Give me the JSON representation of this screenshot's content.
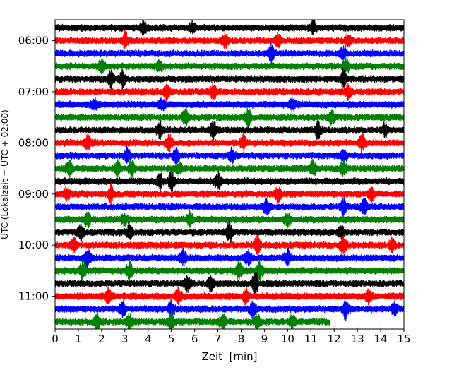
{
  "chart_data": {
    "type": "line",
    "title": "",
    "xlabel": "Zeit  [min]",
    "ylabel": "UTC (Lokalzeit = UTC + 02:00)",
    "xlim": [
      0,
      15
    ],
    "x_ticks": [
      "0",
      "1",
      "2",
      "3",
      "4",
      "5",
      "6",
      "7",
      "8",
      "9",
      "10",
      "11",
      "12",
      "13",
      "14",
      "15"
    ],
    "y_tick_labels": [
      "06:00",
      "07:00",
      "08:00",
      "09:00",
      "10:00",
      "11:00"
    ],
    "trace_interval_minutes": 15,
    "first_trace_start": "05:45",
    "traces_per_hour": 4,
    "grid": "dotted vertical lines at 12, 13 and 14 min below the last trace",
    "series": [
      {
        "color": "#000000",
        "starts": [
          "05:45",
          "06:45",
          "07:45",
          "08:45",
          "09:45",
          "10:45"
        ]
      },
      {
        "color": "#ff0000",
        "starts": [
          "06:00",
          "07:00",
          "08:00",
          "09:00",
          "10:00",
          "11:00"
        ]
      },
      {
        "color": "#0000ff",
        "starts": [
          "06:15",
          "07:15",
          "08:15",
          "09:15",
          "10:15",
          "11:15"
        ]
      },
      {
        "color": "#008000",
        "starts": [
          "06:30",
          "07:30",
          "08:30",
          "09:30",
          "10:30",
          "11:30"
        ]
      }
    ],
    "last_trace_end_min": 11.8,
    "traces": [
      {
        "start": "05:45",
        "events": [
          {
            "t": 3.8,
            "a": 1.0
          },
          {
            "t": 11.1,
            "a": 0.9
          },
          {
            "t": 5.9,
            "a": 0.7
          }
        ]
      },
      {
        "start": "06:00",
        "events": [
          {
            "t": 3.0,
            "a": 1.1
          },
          {
            "t": 7.3,
            "a": 1.0
          },
          {
            "t": 9.6,
            "a": 0.8
          },
          {
            "t": 12.6,
            "a": 0.8
          }
        ]
      },
      {
        "start": "06:15",
        "events": [
          {
            "t": 9.3,
            "a": 1.2
          },
          {
            "t": 12.4,
            "a": 0.8
          }
        ]
      },
      {
        "start": "06:30",
        "events": [
          {
            "t": 2.0,
            "a": 0.9
          },
          {
            "t": 4.5,
            "a": 0.8
          },
          {
            "t": 12.5,
            "a": 1.1
          }
        ]
      },
      {
        "start": "06:45",
        "events": [
          {
            "t": 2.4,
            "a": 1.3
          },
          {
            "t": 2.9,
            "a": 1.2
          },
          {
            "t": 12.4,
            "a": 1.2
          }
        ]
      },
      {
        "start": "07:00",
        "events": [
          {
            "t": 4.8,
            "a": 1.3
          },
          {
            "t": 6.8,
            "a": 1.1
          },
          {
            "t": 12.6,
            "a": 1.0
          }
        ]
      },
      {
        "start": "07:15",
        "events": [
          {
            "t": 4.6,
            "a": 0.9
          },
          {
            "t": 10.2,
            "a": 1.0
          },
          {
            "t": 1.7,
            "a": 0.8
          }
        ]
      },
      {
        "start": "07:30",
        "events": [
          {
            "t": 5.6,
            "a": 1.1
          },
          {
            "t": 8.3,
            "a": 1.2
          },
          {
            "t": 11.9,
            "a": 0.9
          }
        ]
      },
      {
        "start": "07:45",
        "events": [
          {
            "t": 4.5,
            "a": 1.1
          },
          {
            "t": 6.8,
            "a": 1.3
          },
          {
            "t": 11.3,
            "a": 1.2
          },
          {
            "t": 14.2,
            "a": 1.0
          }
        ]
      },
      {
        "start": "08:00",
        "events": [
          {
            "t": 1.4,
            "a": 0.9
          },
          {
            "t": 4.9,
            "a": 1.0
          },
          {
            "t": 8.1,
            "a": 1.1
          },
          {
            "t": 13.2,
            "a": 1.1
          }
        ]
      },
      {
        "start": "08:15",
        "events": [
          {
            "t": 3.1,
            "a": 1.0
          },
          {
            "t": 5.2,
            "a": 1.0
          },
          {
            "t": 7.6,
            "a": 1.0
          },
          {
            "t": 12.4,
            "a": 1.1
          }
        ]
      },
      {
        "start": "08:30",
        "events": [
          {
            "t": 0.6,
            "a": 1.1
          },
          {
            "t": 2.7,
            "a": 1.3
          },
          {
            "t": 3.3,
            "a": 1.1
          },
          {
            "t": 5.3,
            "a": 1.1
          },
          {
            "t": 11.1,
            "a": 1.1
          },
          {
            "t": 12.4,
            "a": 1.0
          }
        ]
      },
      {
        "start": "08:45",
        "events": [
          {
            "t": 4.5,
            "a": 1.1
          },
          {
            "t": 5.0,
            "a": 1.2
          },
          {
            "t": 7.0,
            "a": 1.1
          }
        ]
      },
      {
        "start": "09:00",
        "events": [
          {
            "t": 0.5,
            "a": 1.0
          },
          {
            "t": 2.4,
            "a": 1.1
          },
          {
            "t": 9.6,
            "a": 1.2
          },
          {
            "t": 13.6,
            "a": 1.1
          }
        ]
      },
      {
        "start": "09:15",
        "events": [
          {
            "t": 9.1,
            "a": 1.0
          },
          {
            "t": 12.4,
            "a": 1.0
          },
          {
            "t": 13.3,
            "a": 1.1
          }
        ]
      },
      {
        "start": "09:30",
        "events": [
          {
            "t": 1.4,
            "a": 0.9
          },
          {
            "t": 3.0,
            "a": 0.9
          },
          {
            "t": 5.8,
            "a": 1.0
          },
          {
            "t": 10.0,
            "a": 0.9
          }
        ]
      },
      {
        "start": "09:45",
        "events": [
          {
            "t": 1.1,
            "a": 1.0
          },
          {
            "t": 3.2,
            "a": 1.1
          },
          {
            "t": 7.5,
            "a": 1.5
          },
          {
            "t": 12.3,
            "a": 0.9
          }
        ]
      },
      {
        "start": "10:00",
        "events": [
          {
            "t": 0.8,
            "a": 1.0
          },
          {
            "t": 8.7,
            "a": 1.3
          },
          {
            "t": 12.4,
            "a": 1.3
          },
          {
            "t": 14.5,
            "a": 0.9
          }
        ]
      },
      {
        "start": "10:15",
        "events": [
          {
            "t": 1.4,
            "a": 1.3
          },
          {
            "t": 5.5,
            "a": 1.1
          },
          {
            "t": 8.3,
            "a": 1.2
          },
          {
            "t": 10.0,
            "a": 1.1
          }
        ]
      },
      {
        "start": "10:30",
        "events": [
          {
            "t": 1.2,
            "a": 1.3
          },
          {
            "t": 3.2,
            "a": 1.2
          },
          {
            "t": 7.9,
            "a": 1.3
          },
          {
            "t": 8.8,
            "a": 1.2
          }
        ]
      },
      {
        "start": "10:45",
        "events": [
          {
            "t": 5.7,
            "a": 1.1
          },
          {
            "t": 8.6,
            "a": 1.5
          },
          {
            "t": 6.7,
            "a": 1.0
          }
        ]
      },
      {
        "start": "11:00",
        "events": [
          {
            "t": 2.3,
            "a": 1.0
          },
          {
            "t": 5.3,
            "a": 1.1
          },
          {
            "t": 8.2,
            "a": 1.0
          },
          {
            "t": 13.5,
            "a": 1.0
          }
        ]
      },
      {
        "start": "11:15",
        "events": [
          {
            "t": 2.9,
            "a": 1.1
          },
          {
            "t": 5.0,
            "a": 1.3
          },
          {
            "t": 8.5,
            "a": 1.2
          },
          {
            "t": 12.5,
            "a": 1.3
          },
          {
            "t": 14.6,
            "a": 1.0
          }
        ]
      },
      {
        "start": "11:30",
        "events": [
          {
            "t": 1.8,
            "a": 0.9
          },
          {
            "t": 3.2,
            "a": 1.0
          },
          {
            "t": 5.0,
            "a": 1.2
          },
          {
            "t": 7.2,
            "a": 1.1
          },
          {
            "t": 8.7,
            "a": 1.0
          },
          {
            "t": 10.2,
            "a": 0.9
          }
        ]
      }
    ]
  }
}
